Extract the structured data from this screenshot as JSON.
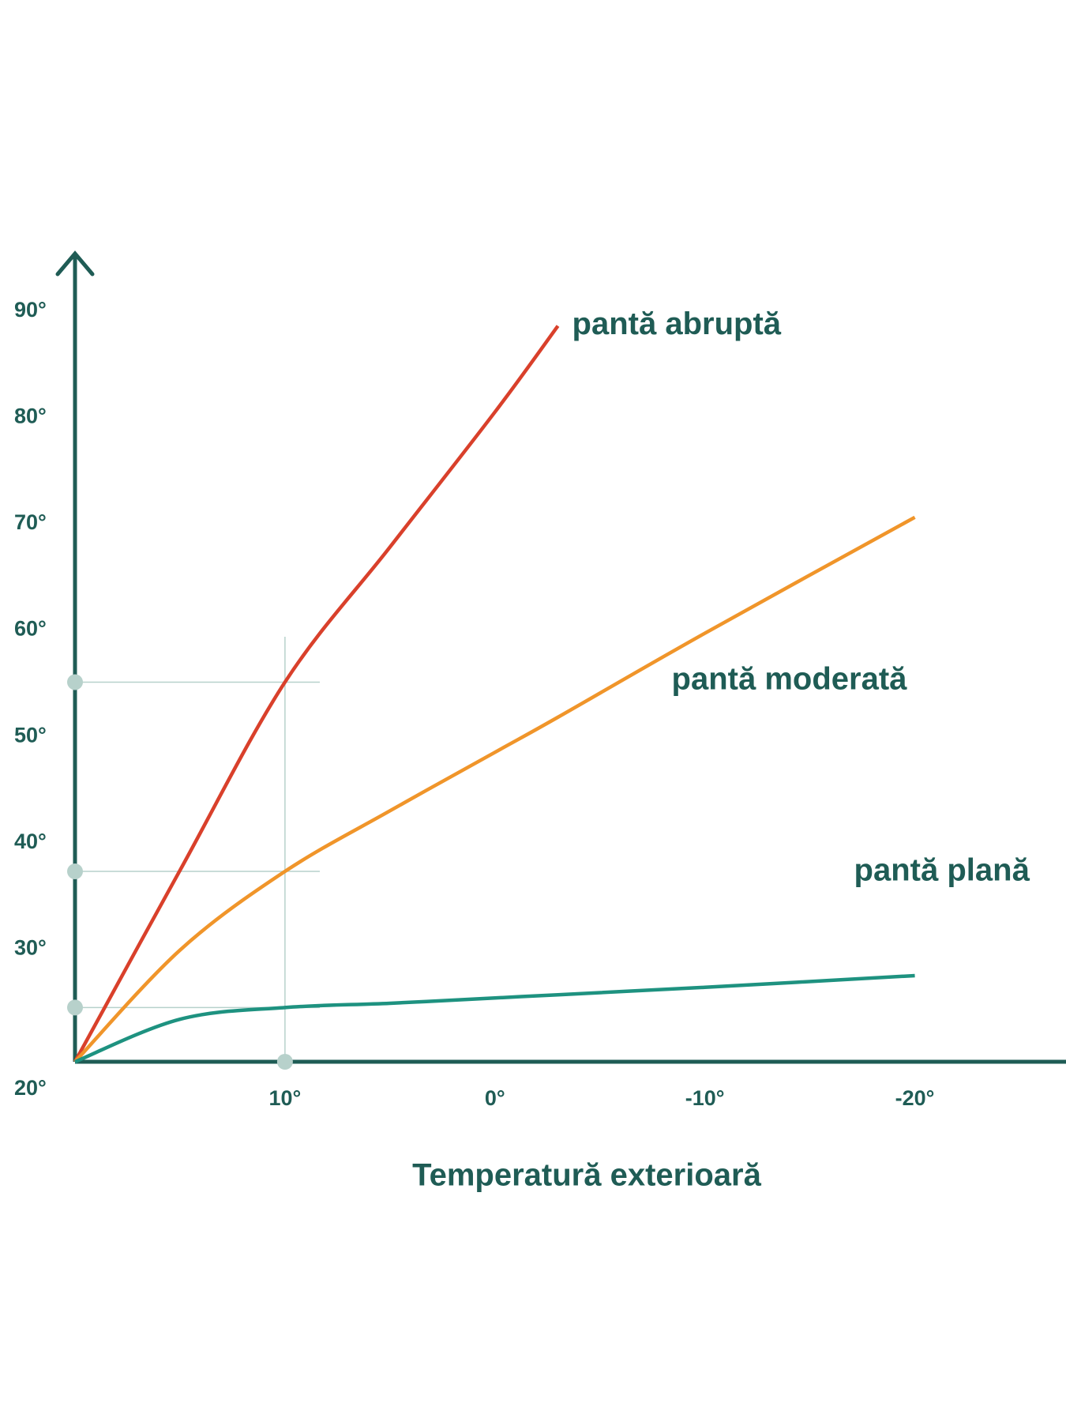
{
  "chart_data": {
    "type": "line",
    "x_label": "Temperatură exterioară",
    "x": [
      20,
      15,
      10,
      5,
      0,
      -3,
      -10,
      -20
    ],
    "series": [
      {
        "name": "pantă abruptă",
        "color": "#d9402b",
        "values": [
          20,
          38,
          55.7,
          68.4,
          81.1,
          89.2,
          null,
          null
        ]
      },
      {
        "name": "pantă moderată",
        "color": "#f0952a",
        "values": [
          20,
          30.5,
          37.9,
          43.6,
          49.1,
          52.4,
          60.3,
          71.2
        ]
      },
      {
        "name": "pantă plană",
        "color": "#1e9280",
        "values": [
          20,
          24,
          25.1,
          25.5,
          26,
          26.3,
          27,
          28.1
        ]
      }
    ],
    "xlim": [
      20,
      -27.2
    ],
    "ylim": [
      20,
      96
    ],
    "xticks": [
      {
        "value": 10,
        "label": "10°"
      },
      {
        "value": 0,
        "label": "0°"
      },
      {
        "value": -10,
        "label": "-10°"
      },
      {
        "value": -20,
        "label": "-20°"
      }
    ],
    "yticks": [
      {
        "value": 20,
        "label": "20°"
      },
      {
        "value": 30,
        "label": "30°"
      },
      {
        "value": 40,
        "label": "40°"
      },
      {
        "value": 50,
        "label": "50°"
      },
      {
        "value": 60,
        "label": "60°"
      },
      {
        "value": 70,
        "label": "70°"
      },
      {
        "value": 80,
        "label": "80°"
      },
      {
        "value": 90,
        "label": "90°"
      }
    ],
    "reference": {
      "x": 10,
      "y": [
        55.7,
        37.9,
        25.1
      ]
    },
    "grid": false
  }
}
